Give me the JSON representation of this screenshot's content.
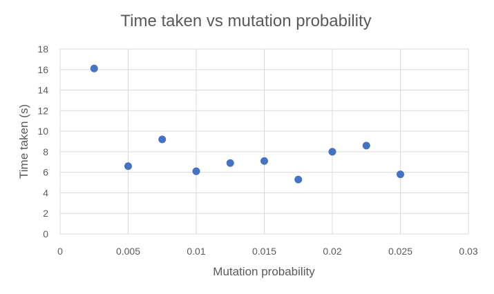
{
  "chart_data": {
    "type": "scatter",
    "title": "Time taken vs mutation probability",
    "xlabel": "Mutation probability",
    "ylabel": "Time taken (s)",
    "xlim": [
      0,
      0.03
    ],
    "ylim": [
      0,
      18
    ],
    "x_ticks": [
      0,
      0.005,
      0.01,
      0.015,
      0.02,
      0.025,
      0.03
    ],
    "x_tick_labels": [
      "0",
      "0.005",
      "0.01",
      "0.015",
      "0.02",
      "0.025",
      "0.03"
    ],
    "y_ticks": [
      0,
      2,
      4,
      6,
      8,
      10,
      12,
      14,
      16,
      18
    ],
    "y_tick_labels": [
      "0",
      "2",
      "4",
      "6",
      "8",
      "10",
      "12",
      "14",
      "16",
      "18"
    ],
    "grid": true,
    "legend": "none",
    "series": [
      {
        "color": "#4472c4",
        "x": [
          0.0025,
          0.005,
          0.0075,
          0.01,
          0.0125,
          0.015,
          0.0175,
          0.02,
          0.0225,
          0.025
        ],
        "y": [
          16.1,
          6.6,
          9.2,
          6.1,
          6.9,
          7.1,
          5.3,
          8.0,
          8.6,
          5.8
        ]
      }
    ]
  }
}
